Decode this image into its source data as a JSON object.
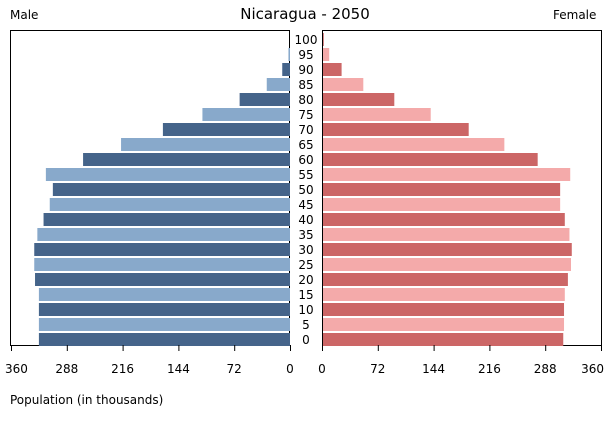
{
  "chart_data": {
    "type": "bar",
    "orientation": "horizontal-population-pyramid",
    "title": "Nicaragua - 2050",
    "left_label": "Male",
    "right_label": "Female",
    "xlabel": "Population (in thousands)",
    "xlim": [
      0,
      360
    ],
    "x_ticks": [
      360,
      288,
      216,
      144,
      72,
      0
    ],
    "categories": [
      "0",
      "5",
      "10",
      "15",
      "20",
      "25",
      "30",
      "35",
      "40",
      "45",
      "50",
      "55",
      "60",
      "65",
      "70",
      "75",
      "80",
      "85",
      "90",
      "95",
      "100"
    ],
    "series": [
      {
        "name": "Male",
        "values": [
          324,
          324,
          324,
          324,
          329,
          330,
          330,
          326,
          318,
          310,
          306,
          315,
          267,
          218,
          164,
          113,
          65,
          30,
          10,
          2,
          0
        ],
        "colors": [
          "#45648a",
          "#88a9cb"
        ]
      },
      {
        "name": "Female",
        "values": [
          310,
          311,
          311,
          312,
          316,
          320,
          321,
          318,
          312,
          306,
          306,
          319,
          277,
          234,
          188,
          139,
          92,
          52,
          24,
          8,
          1
        ],
        "colors": [
          "#cc6666",
          "#f4aaaa"
        ]
      }
    ]
  }
}
